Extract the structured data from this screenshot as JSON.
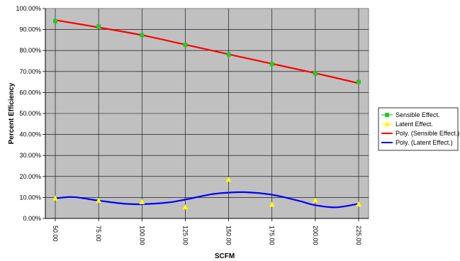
{
  "chart_data": {
    "type": "scatter",
    "xlabel": "SCFM",
    "ylabel": "Percent Efficiency",
    "x_ticks": [
      "50.00",
      "75.00",
      "100.00",
      "125.00",
      "150.00",
      "175.00",
      "200.00",
      "225.00"
    ],
    "y_ticks": [
      "0.00%",
      "10.00%",
      "20.00%",
      "30.00%",
      "40.00%",
      "50.00%",
      "60.00%",
      "70.00%",
      "80.00%",
      "90.00%",
      "100.00%"
    ],
    "xlim": [
      50,
      225
    ],
    "ylim": [
      0,
      100
    ],
    "grid": true,
    "legend_position": "right",
    "series": [
      {
        "name": "Sensible Effect.",
        "kind": "points",
        "marker": "square",
        "color": "#22cc22",
        "x": [
          50,
          75,
          100,
          125,
          150,
          175,
          200,
          225
        ],
        "y": [
          94.0,
          91.5,
          87.3,
          82.7,
          78.1,
          73.5,
          69.0,
          65.0
        ]
      },
      {
        "name": "Latent Effect.",
        "kind": "points",
        "marker": "triangle",
        "color": "#ffff00",
        "x": [
          50,
          75,
          100,
          125,
          150,
          175,
          200,
          225
        ],
        "y": [
          9.6,
          8.5,
          7.8,
          5.3,
          18.5,
          6.6,
          8.6,
          6.7
        ]
      },
      {
        "name": "Poly. (Sensible Effect.)",
        "kind": "trendline",
        "color": "#ff0000",
        "x": [
          50,
          75,
          100,
          125,
          150,
          175,
          200,
          225
        ],
        "y": [
          94.5,
          91.0,
          87.3,
          82.8,
          78.2,
          73.7,
          69.2,
          64.4
        ]
      },
      {
        "name": "Poly. (Latent Effect.)",
        "kind": "trendline",
        "color": "#0000ff",
        "x": [
          50,
          60,
          75,
          90,
          100,
          115,
          125,
          140,
          150,
          160,
          175,
          190,
          200,
          212,
          225
        ],
        "y": [
          9.5,
          10.2,
          8.5,
          7.0,
          6.8,
          7.6,
          9.0,
          11.5,
          12.3,
          12.5,
          11.3,
          8.5,
          6.3,
          5.3,
          7.0
        ]
      }
    ]
  }
}
